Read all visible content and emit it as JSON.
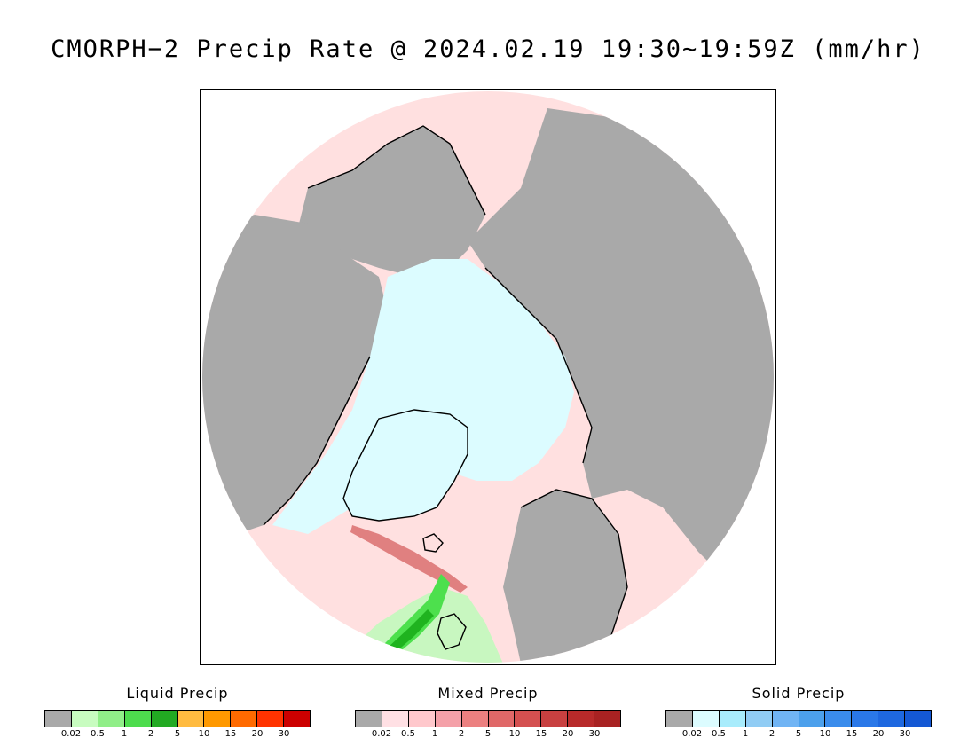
{
  "title": "CMORPH−2 Precip Rate @ 2024.02.19 19:30~19:59Z (mm/hr)",
  "map": {
    "colors": {
      "land_no_precip": "#a9a9a9",
      "ocean_light_mixed": "#ffe0e0",
      "solid_light": "#dcfcff",
      "liquid_light": "#c8f7c0",
      "liquid_mid": "#4de04d",
      "liquid_heavy": "#1fb31f",
      "mixed_band": "#e08080",
      "coastline": "#000000"
    }
  },
  "legends": [
    {
      "id": "liquid",
      "title": "Liquid Precip",
      "colors": [
        "#a9a9a9",
        "#c8fcc0",
        "#90ee88",
        "#4ddc4d",
        "#22aa22",
        "#ffbb40",
        "#ff9900",
        "#ff6a00",
        "#ff3300",
        "#cc0000"
      ],
      "ticks": [
        "0.02",
        "0.5",
        "1",
        "2",
        "5",
        "10",
        "15",
        "20",
        "30"
      ]
    },
    {
      "id": "mixed",
      "title": "Mixed Precip",
      "colors": [
        "#a9a9a9",
        "#ffe0e4",
        "#ffc8cc",
        "#f4a0a8",
        "#ec8080",
        "#e06868",
        "#d45050",
        "#c84040",
        "#b82a2a",
        "#a82222"
      ],
      "ticks": [
        "0.02",
        "0.5",
        "1",
        "2",
        "5",
        "10",
        "15",
        "20",
        "30"
      ]
    },
    {
      "id": "solid",
      "title": "Solid Precip",
      "colors": [
        "#a9a9a9",
        "#dcfcff",
        "#a8ecfc",
        "#90ccf4",
        "#70b4f4",
        "#4ca0ec",
        "#3a8cec",
        "#2a78e8",
        "#1e68e0",
        "#1458d4"
      ],
      "ticks": [
        "0.02",
        "0.5",
        "1",
        "2",
        "5",
        "10",
        "15",
        "20",
        "30"
      ]
    }
  ]
}
